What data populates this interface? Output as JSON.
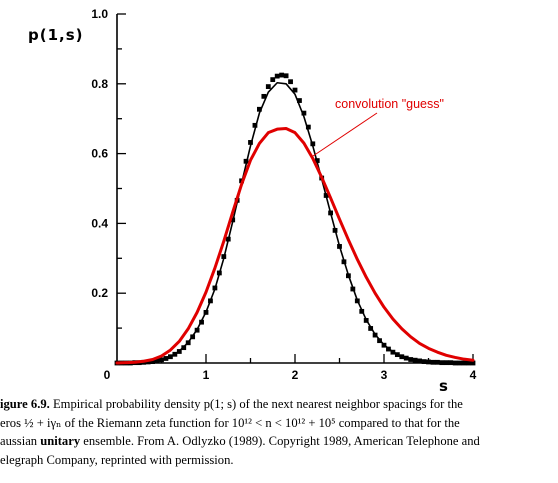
{
  "chart_data": {
    "type": "line",
    "xlabel": "s",
    "ylabel": "p(1,s)",
    "xlim": [
      0,
      4
    ],
    "ylim": [
      0,
      1.0
    ],
    "x_ticks": [
      "0",
      "1",
      "2",
      "3",
      "4"
    ],
    "y_ticks": [
      "0.2",
      "0.4",
      "0.6",
      "0.8",
      "1.0"
    ],
    "annotation": "convolution \"guess\"",
    "series": [
      {
        "style": "empirical-squares",
        "color": "#000000",
        "points": [
          [
            0.0,
            0.0
          ],
          [
            0.05,
            0.0
          ],
          [
            0.1,
            0.0
          ],
          [
            0.15,
            0.0
          ],
          [
            0.2,
            0.001
          ],
          [
            0.25,
            0.001
          ],
          [
            0.3,
            0.002
          ],
          [
            0.35,
            0.003
          ],
          [
            0.4,
            0.004
          ],
          [
            0.45,
            0.006
          ],
          [
            0.5,
            0.009
          ],
          [
            0.55,
            0.013
          ],
          [
            0.6,
            0.018
          ],
          [
            0.65,
            0.025
          ],
          [
            0.7,
            0.033
          ],
          [
            0.75,
            0.044
          ],
          [
            0.8,
            0.058
          ],
          [
            0.85,
            0.075
          ],
          [
            0.9,
            0.094
          ],
          [
            0.95,
            0.117
          ],
          [
            1.0,
            0.145
          ],
          [
            1.05,
            0.178
          ],
          [
            1.1,
            0.215
          ],
          [
            1.15,
            0.258
          ],
          [
            1.2,
            0.305
          ],
          [
            1.25,
            0.355
          ],
          [
            1.3,
            0.41
          ],
          [
            1.35,
            0.466
          ],
          [
            1.4,
            0.522
          ],
          [
            1.45,
            0.578
          ],
          [
            1.5,
            0.632
          ],
          [
            1.55,
            0.681
          ],
          [
            1.6,
            0.727
          ],
          [
            1.65,
            0.764
          ],
          [
            1.7,
            0.792
          ],
          [
            1.75,
            0.812
          ],
          [
            1.8,
            0.822
          ],
          [
            1.85,
            0.825
          ],
          [
            1.9,
            0.823
          ],
          [
            1.95,
            0.806
          ],
          [
            2.0,
            0.782
          ],
          [
            2.05,
            0.752
          ],
          [
            2.1,
            0.716
          ],
          [
            2.15,
            0.676
          ],
          [
            2.2,
            0.628
          ],
          [
            2.25,
            0.58
          ],
          [
            2.3,
            0.53
          ],
          [
            2.35,
            0.48
          ],
          [
            2.4,
            0.43
          ],
          [
            2.45,
            0.38
          ],
          [
            2.5,
            0.334
          ],
          [
            2.55,
            0.29
          ],
          [
            2.6,
            0.25
          ],
          [
            2.65,
            0.212
          ],
          [
            2.7,
            0.178
          ],
          [
            2.75,
            0.148
          ],
          [
            2.8,
            0.122
          ],
          [
            2.85,
            0.099
          ],
          [
            2.9,
            0.08
          ],
          [
            2.95,
            0.064
          ],
          [
            3.0,
            0.051
          ],
          [
            3.05,
            0.04
          ],
          [
            3.1,
            0.031
          ],
          [
            3.15,
            0.024
          ],
          [
            3.2,
            0.018
          ],
          [
            3.25,
            0.014
          ],
          [
            3.3,
            0.01
          ],
          [
            3.35,
            0.008
          ],
          [
            3.4,
            0.006
          ],
          [
            3.45,
            0.004
          ],
          [
            3.5,
            0.003
          ],
          [
            3.55,
            0.002
          ],
          [
            3.6,
            0.002
          ],
          [
            3.65,
            0.001
          ],
          [
            3.7,
            0.001
          ],
          [
            3.75,
            0.001
          ],
          [
            3.8,
            0.0
          ],
          [
            3.85,
            0.0
          ],
          [
            3.9,
            0.0
          ],
          [
            3.95,
            0.0
          ],
          [
            4.0,
            0.0
          ]
        ]
      },
      {
        "style": "gue-line",
        "color": "#000000",
        "points": [
          [
            0.0,
            0.0
          ],
          [
            0.1,
            0.0
          ],
          [
            0.2,
            0.001
          ],
          [
            0.3,
            0.002
          ],
          [
            0.4,
            0.004
          ],
          [
            0.5,
            0.009
          ],
          [
            0.6,
            0.018
          ],
          [
            0.7,
            0.034
          ],
          [
            0.8,
            0.059
          ],
          [
            0.9,
            0.096
          ],
          [
            1.0,
            0.146
          ],
          [
            1.1,
            0.212
          ],
          [
            1.2,
            0.3
          ],
          [
            1.3,
            0.405
          ],
          [
            1.4,
            0.515
          ],
          [
            1.5,
            0.622
          ],
          [
            1.6,
            0.716
          ],
          [
            1.7,
            0.776
          ],
          [
            1.8,
            0.803
          ],
          [
            1.9,
            0.8
          ],
          [
            2.0,
            0.77
          ],
          [
            2.1,
            0.706
          ],
          [
            2.2,
            0.622
          ],
          [
            2.3,
            0.527
          ],
          [
            2.4,
            0.43
          ],
          [
            2.5,
            0.335
          ],
          [
            2.6,
            0.252
          ],
          [
            2.7,
            0.18
          ],
          [
            2.8,
            0.124
          ],
          [
            2.9,
            0.082
          ],
          [
            3.0,
            0.052
          ],
          [
            3.1,
            0.032
          ],
          [
            3.2,
            0.019
          ],
          [
            3.3,
            0.011
          ],
          [
            3.4,
            0.006
          ],
          [
            3.5,
            0.003
          ],
          [
            3.6,
            0.002
          ],
          [
            3.7,
            0.001
          ],
          [
            3.8,
            0.0
          ],
          [
            4.0,
            0.0
          ]
        ]
      },
      {
        "style": "convolution-guess",
        "color": "#e00000",
        "points": [
          [
            0.0,
            0.0
          ],
          [
            0.1,
            0.001
          ],
          [
            0.2,
            0.002
          ],
          [
            0.3,
            0.005
          ],
          [
            0.4,
            0.01
          ],
          [
            0.5,
            0.02
          ],
          [
            0.6,
            0.037
          ],
          [
            0.7,
            0.062
          ],
          [
            0.8,
            0.098
          ],
          [
            0.9,
            0.145
          ],
          [
            1.0,
            0.203
          ],
          [
            1.1,
            0.272
          ],
          [
            1.2,
            0.349
          ],
          [
            1.3,
            0.432
          ],
          [
            1.4,
            0.512
          ],
          [
            1.5,
            0.581
          ],
          [
            1.6,
            0.629
          ],
          [
            1.7,
            0.66
          ],
          [
            1.8,
            0.67
          ],
          [
            1.9,
            0.672
          ],
          [
            2.0,
            0.66
          ],
          [
            2.1,
            0.63
          ],
          [
            2.2,
            0.586
          ],
          [
            2.3,
            0.532
          ],
          [
            2.4,
            0.473
          ],
          [
            2.5,
            0.412
          ],
          [
            2.6,
            0.353
          ],
          [
            2.7,
            0.297
          ],
          [
            2.8,
            0.246
          ],
          [
            2.9,
            0.2
          ],
          [
            3.0,
            0.16
          ],
          [
            3.1,
            0.126
          ],
          [
            3.2,
            0.098
          ],
          [
            3.3,
            0.075
          ],
          [
            3.4,
            0.056
          ],
          [
            3.5,
            0.042
          ],
          [
            3.6,
            0.031
          ],
          [
            3.7,
            0.022
          ],
          [
            3.8,
            0.016
          ],
          [
            3.9,
            0.011
          ],
          [
            4.0,
            0.008
          ]
        ]
      }
    ]
  },
  "caption": {
    "label": "igure 6.9.",
    "line1_after_label": "Empirical probability density p(1; s) of the next nearest neighbor spacings for the",
    "line2": "eros ½ + iγₙ of the Riemann zeta function for 10¹² < n < 10¹² + 10⁵ compared to that for the",
    "line3_pre": "aussian",
    "line3_bold": "unitary",
    "line3_post": "ensemble. From A. Odlyzko (1989). Copyright 1989, American Telephone and",
    "line4": "elegraph Company, reprinted with permission."
  }
}
